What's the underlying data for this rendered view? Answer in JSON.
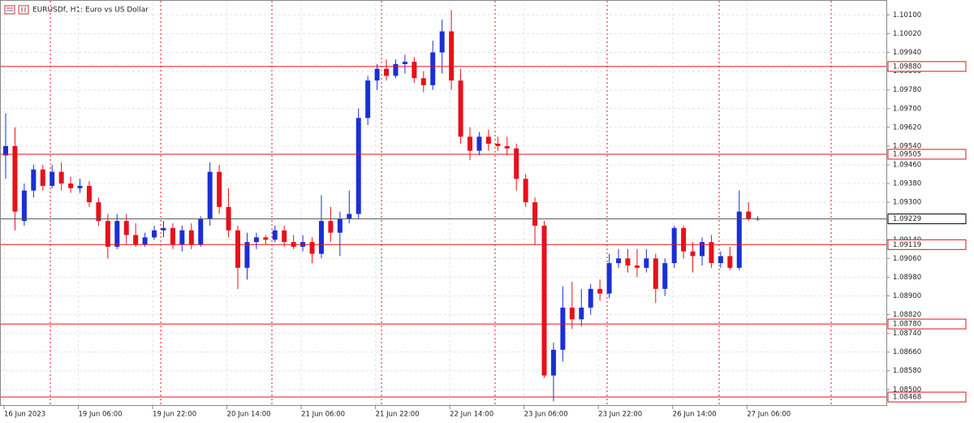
{
  "chart_data": {
    "type": "candlestick",
    "title": "EURUSDf, H1:  Euro vs US Dollar",
    "categories": [
      "16 Jun 2023",
      null,
      null,
      null,
      null,
      null,
      null,
      null,
      "19 Jun 06:00",
      null,
      null,
      null,
      null,
      null,
      null,
      null,
      "19 Jun 22:00",
      null,
      null,
      null,
      null,
      null,
      null,
      null,
      "20 Jun 14:00",
      null,
      null,
      null,
      null,
      null,
      null,
      null,
      "21 Jun 06:00",
      null,
      null,
      null,
      null,
      null,
      null,
      null,
      "21 Jun 22:00",
      null,
      null,
      null,
      null,
      null,
      null,
      null,
      "22 Jun 14:00",
      null,
      null,
      null,
      null,
      null,
      null,
      null,
      "23 Jun 06:00",
      null,
      null,
      null,
      null,
      null,
      null,
      null,
      "23 Jun 22:00",
      null,
      null,
      null,
      null,
      null,
      null,
      null,
      "26 Jun 14:00",
      null,
      null,
      null,
      null,
      null,
      null,
      null,
      "27 Jun 06:00",
      null
    ],
    "open": [
      1.095,
      1.0954,
      1.0922,
      1.0935,
      1.0944,
      1.0937,
      1.0943,
      1.0938,
      1.0936,
      1.0937,
      1.093,
      1.0922,
      1.0911,
      1.0922,
      1.0916,
      1.0912,
      1.0915,
      1.0918,
      1.0919,
      1.0912,
      1.0918,
      1.0912,
      1.0923,
      1.0943,
      1.0928,
      1.0918,
      1.0902,
      1.0913,
      1.0915,
      1.0914,
      1.0918,
      1.0913,
      1.0911,
      1.0913,
      1.0908,
      1.0922,
      1.0917,
      1.0923,
      1.0925,
      1.0966,
      1.0982,
      1.0987,
      1.0984,
      1.0989,
      1.099,
      1.0983,
      1.098,
      1.0994,
      1.1003,
      1.0982,
      1.0958,
      1.0952,
      1.0958,
      1.0955,
      1.0954,
      1.0953,
      1.094,
      1.093,
      1.092,
      1.0856,
      1.0867,
      1.0885,
      1.088,
      1.0885,
      1.0893,
      1.0891,
      1.0904,
      1.0906,
      1.0903,
      1.0902,
      1.0906,
      1.0893,
      1.0904,
      1.0919,
      1.0909,
      1.0907,
      1.0913,
      1.0904,
      1.0907,
      1.0902,
      1.0926,
      1.0923
    ],
    "high": [
      1.0968,
      1.0962,
      1.0938,
      1.0946,
      1.0946,
      1.0946,
      1.0947,
      1.0941,
      1.094,
      1.0939,
      1.0932,
      1.0925,
      1.0925,
      1.0925,
      1.0921,
      1.0917,
      1.092,
      1.0922,
      1.0921,
      1.092,
      1.0921,
      1.0924,
      1.0947,
      1.0946,
      1.0936,
      1.092,
      1.0917,
      1.0917,
      1.0916,
      1.092,
      1.092,
      1.0916,
      1.0916,
      1.0915,
      1.0933,
      1.0928,
      1.0926,
      1.0935,
      1.097,
      1.0984,
      1.0989,
      1.0991,
      1.0991,
      1.0993,
      1.0992,
      1.0986,
      1.0999,
      1.1008,
      1.1012,
      1.0987,
      1.0962,
      1.096,
      1.0961,
      1.0958,
      1.0958,
      1.0955,
      1.0942,
      1.0932,
      1.0922,
      1.087,
      1.0894,
      1.0896,
      1.0893,
      1.0895,
      1.0897,
      1.0908,
      1.091,
      1.091,
      1.091,
      1.091,
      1.0908,
      1.0906,
      1.092,
      1.092,
      1.0913,
      1.0915,
      1.0916,
      1.0909,
      1.0911,
      1.0935,
      1.093,
      1.0924
    ],
    "low": [
      1.094,
      1.0918,
      1.092,
      1.0932,
      1.0935,
      1.0936,
      1.0935,
      1.0934,
      1.0934,
      1.0928,
      1.092,
      1.0906,
      1.091,
      1.0912,
      1.0911,
      1.0911,
      1.0914,
      1.0915,
      1.091,
      1.0909,
      1.091,
      1.0911,
      1.092,
      1.0925,
      1.0915,
      1.0893,
      1.0897,
      1.091,
      1.0912,
      1.0913,
      1.0911,
      1.091,
      1.0909,
      1.0904,
      1.0906,
      1.0913,
      1.0907,
      1.0921,
      1.0923,
      1.0963,
      1.0978,
      1.0982,
      1.0983,
      1.0985,
      1.0981,
      1.0977,
      1.0978,
      1.0985,
      1.0978,
      1.0955,
      1.0948,
      1.095,
      1.0952,
      1.0952,
      1.095,
      1.0935,
      1.0928,
      1.0912,
      1.0855,
      1.0845,
      1.0862,
      1.0876,
      1.0877,
      1.0882,
      1.0888,
      1.0889,
      1.0902,
      1.09,
      1.0898,
      1.09,
      1.0887,
      1.089,
      1.0902,
      1.0906,
      1.09,
      1.0903,
      1.0902,
      1.0902,
      1.0901,
      1.0901,
      1.0922,
      1.0922
    ],
    "close": [
      1.0954,
      1.0926,
      1.0935,
      1.0944,
      1.0937,
      1.0943,
      1.0938,
      1.0936,
      1.0937,
      1.093,
      1.0922,
      1.0911,
      1.0922,
      1.0916,
      1.0912,
      1.0915,
      1.0918,
      1.0919,
      1.0912,
      1.0918,
      1.0912,
      1.0923,
      1.0943,
      1.0928,
      1.0918,
      1.0902,
      1.0913,
      1.0915,
      1.0914,
      1.0918,
      1.0913,
      1.0911,
      1.0913,
      1.0908,
      1.0922,
      1.0917,
      1.0923,
      1.0925,
      1.0966,
      1.0982,
      1.0987,
      1.0984,
      1.0989,
      1.099,
      1.0983,
      1.098,
      1.0994,
      1.1003,
      1.0982,
      1.0958,
      1.0952,
      1.0958,
      1.0955,
      1.0954,
      1.0953,
      1.094,
      1.093,
      1.092,
      1.0856,
      1.0867,
      1.0885,
      1.088,
      1.0885,
      1.0893,
      1.0891,
      1.0904,
      1.0906,
      1.0903,
      1.0902,
      1.0906,
      1.0893,
      1.0904,
      1.0919,
      1.0909,
      1.0907,
      1.0913,
      1.0904,
      1.0907,
      1.0902,
      1.0926,
      1.0923,
      1.0923
    ],
    "up_color": "#1a2fd6",
    "down_color": "#e8101a",
    "ylim": [
      1.0843,
      1.1015
    ],
    "yticks": [
      {
        "value": 1.101,
        "label": "1.10100"
      },
      {
        "value": 1.1002,
        "label": "1.10020"
      },
      {
        "value": 1.0994,
        "label": "1.09940"
      },
      {
        "value": 1.0986,
        "label": "1.09860"
      },
      {
        "value": 1.0978,
        "label": "1.09780"
      },
      {
        "value": 1.097,
        "label": "1.09700"
      },
      {
        "value": 1.0962,
        "label": "1.09620"
      },
      {
        "value": 1.0954,
        "label": "1.09540"
      },
      {
        "value": 1.0946,
        "label": "1.09460"
      },
      {
        "value": 1.0938,
        "label": "1.09380"
      },
      {
        "value": 1.093,
        "label": "1.09300"
      },
      {
        "value": 1.0914,
        "label": "1.09140"
      },
      {
        "value": 1.0906,
        "label": "1.09060"
      },
      {
        "value": 1.0898,
        "label": "1.08980"
      },
      {
        "value": 1.089,
        "label": "1.08900"
      },
      {
        "value": 1.0882,
        "label": "1.08820"
      },
      {
        "value": 1.0874,
        "label": "1.08740"
      },
      {
        "value": 1.0866,
        "label": "1.08660"
      },
      {
        "value": 1.0858,
        "label": "1.08580"
      },
      {
        "value": 1.085,
        "label": "1.08500"
      }
    ],
    "levels": [
      {
        "value": 1.0988,
        "label": "1.09880"
      },
      {
        "value": 1.09505,
        "label": "1.09505"
      },
      {
        "value": 1.09119,
        "label": "1.09119"
      },
      {
        "value": 1.0878,
        "label": "1.08780"
      },
      {
        "value": 1.08468,
        "label": "1.08468"
      }
    ],
    "level_color": "#e8101a",
    "current_price": {
      "value": 1.09229,
      "label": "1.09229"
    },
    "grid": true
  }
}
